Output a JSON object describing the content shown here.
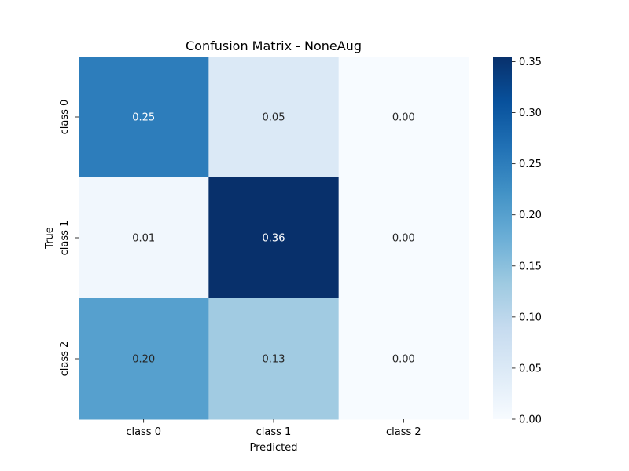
{
  "chart_data": {
    "type": "heatmap",
    "title": "Confusion Matrix - NoneAug",
    "xlabel": "Predicted",
    "ylabel": "True",
    "x_categories": [
      "class 0",
      "class 1",
      "class 2"
    ],
    "y_categories": [
      "class 0",
      "class 1",
      "class 2"
    ],
    "values": [
      [
        0.25,
        0.05,
        0.0
      ],
      [
        0.01,
        0.36,
        0.0
      ],
      [
        0.2,
        0.13,
        0.0
      ]
    ],
    "annotations": [
      [
        "0.25",
        "0.05",
        "0.00"
      ],
      [
        "0.01",
        "0.36",
        "0.00"
      ],
      [
        "0.20",
        "0.13",
        "0.00"
      ]
    ],
    "colormap": "Blues",
    "colorbar": {
      "range": [
        0,
        0.355
      ],
      "ticks": [
        0.0,
        0.05,
        0.1,
        0.15,
        0.2,
        0.25,
        0.3,
        0.35
      ],
      "tick_labels": [
        "0.00",
        "0.05",
        "0.10",
        "0.15",
        "0.20",
        "0.25",
        "0.30",
        "0.35"
      ]
    },
    "grid": false
  }
}
